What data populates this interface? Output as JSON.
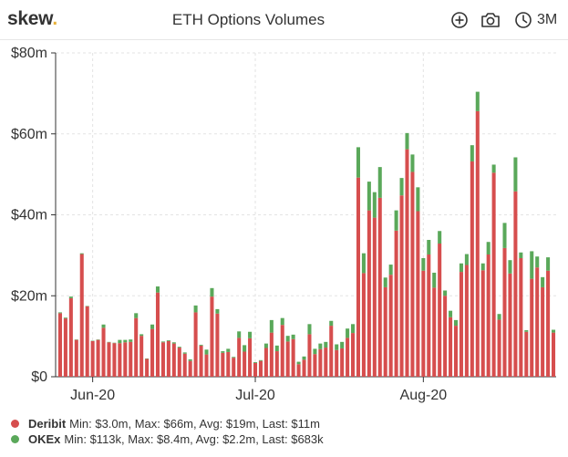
{
  "header": {
    "logo_text": "skew",
    "logo_dot": ".",
    "title": "ETH Options Volumes",
    "range_label": "3M",
    "icons": [
      "zoom-in-icon",
      "camera-icon",
      "clock-icon"
    ]
  },
  "colors": {
    "deribit": "#d64e4e",
    "okex": "#5aa85a",
    "logo_dot": "#e8b23b"
  },
  "legend": [
    {
      "name": "Deribit",
      "text": "Min: $3.0m, Max: $66m, Avg: $19m, Last: $11m"
    },
    {
      "name": "OKEx",
      "text": "Min: $113k, Max: $8.4m, Avg: $2.2m, Last: $683k"
    }
  ],
  "chart_data": {
    "type": "bar",
    "stacked": true,
    "ylim": [
      0,
      80
    ],
    "y_ticks": [
      0,
      20,
      40,
      60,
      80
    ],
    "y_tick_labels": [
      "$0",
      "$20m",
      "$40m",
      "$60m",
      "$80m"
    ],
    "x_ticks": [
      {
        "index": 6,
        "label": "Jun-20"
      },
      {
        "index": 36,
        "label": "Jul-20"
      },
      {
        "index": 67,
        "label": "Aug-20"
      }
    ],
    "grid": true,
    "series": [
      {
        "name": "Deribit",
        "values": [
          15.7,
          14.4,
          19.4,
          9.1,
          30.3,
          17.4,
          8.8,
          9.1,
          12.1,
          8.5,
          8.3,
          8.3,
          8.5,
          8.6,
          14.5,
          10.1,
          4.4,
          11.8,
          20.8,
          8.5,
          8.8,
          8.2,
          7.2,
          5.7,
          3.9,
          15.9,
          7.7,
          5.5,
          19.8,
          15.6,
          5.9,
          6.1,
          4.7,
          9.6,
          6.2,
          9.5,
          3.4,
          3.9,
          7.1,
          10.9,
          6.3,
          12.8,
          8.7,
          9.3,
          3.1,
          4.2,
          10.5,
          5.6,
          6.8,
          7.2,
          12.6,
          6.6,
          7.0,
          9.6,
          10.8,
          49.2,
          25.6,
          41.1,
          39.3,
          44.2,
          22.1,
          25.2,
          36.1,
          44.8,
          56.2,
          50.6,
          40.9,
          26.2,
          30.2,
          22.0,
          32.9,
          20.0,
          14.7,
          12.6,
          25.9,
          27.6,
          53.2,
          65.6,
          26.3,
          30.2,
          50.4,
          14.1,
          31.8,
          25.5,
          45.8,
          29.3,
          11.1,
          24.2,
          27.0,
          22.1,
          26.2,
          10.9
        ],
        "approximate": true
      },
      {
        "name": "OKEx",
        "values": [
          0.2,
          0.2,
          0.4,
          0.1,
          0.2,
          0.1,
          0.1,
          0.1,
          0.8,
          0.1,
          0.1,
          0.8,
          0.6,
          0.6,
          1.2,
          0.4,
          0.1,
          1.1,
          1.5,
          0.2,
          0.2,
          0.3,
          0.2,
          0.3,
          0.4,
          1.7,
          0.2,
          1.2,
          2.1,
          1.1,
          0.4,
          0.8,
          0.2,
          1.6,
          1.6,
          1.6,
          0.2,
          0.2,
          1.1,
          3.1,
          1.4,
          1.7,
          1.4,
          1.1,
          0.6,
          0.8,
          2.5,
          1.3,
          1.4,
          1.4,
          1.2,
          1.4,
          1.6,
          2.3,
          2.2,
          7.5,
          4.9,
          7.1,
          6.3,
          7.6,
          2.4,
          2.5,
          5.0,
          4.3,
          4.0,
          4.3,
          5.9,
          3.1,
          3.6,
          3.7,
          3.1,
          1.3,
          1.6,
          1.4,
          2.1,
          2.7,
          4.0,
          4.8,
          1.7,
          3.1,
          2.0,
          1.4,
          6.2,
          3.3,
          8.4,
          1.4,
          0.4,
          6.8,
          2.7,
          2.5,
          3.3,
          0.7
        ],
        "approximate": true
      }
    ]
  }
}
